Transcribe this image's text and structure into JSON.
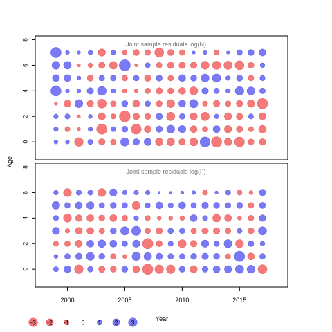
{
  "chart_data": {
    "type": "scatter",
    "xlabel": "Year",
    "ylabel": "Age",
    "x_ticks": [
      2000,
      2005,
      2010,
      2015
    ],
    "y_ticks": [
      0,
      2,
      4,
      6,
      8
    ],
    "xlim": [
      1997.2,
      2019.2
    ],
    "years": [
      1999,
      2000,
      2001,
      2002,
      2003,
      2004,
      2005,
      2006,
      2007,
      2008,
      2009,
      2010,
      2011,
      2012,
      2013,
      2014,
      2015,
      2016,
      2017
    ],
    "colors": {
      "positive": "#6c6cf5",
      "negative": "#f56c6c"
    },
    "panels": [
      {
        "title": "Joint sample residuals log(N)",
        "ylim": [
          -1.4,
          8.3
        ],
        "ages": [
          0,
          1,
          2,
          3,
          4,
          5,
          6,
          7
        ],
        "residuals": [
          [
            0.3,
            0.3,
            -1.4,
            0.5,
            -0.8,
            -0.6,
            1.3,
            0.8,
            1.0,
            -1.1,
            -1.1,
            -0.8,
            -1.2,
            1.9,
            -2.0,
            -1.0,
            -1.8,
            -0.7,
            -0.8
          ],
          [
            0.4,
            -0.5,
            -0.2,
            0.4,
            -2.0,
            0.5,
            0.7,
            -1.9,
            -0.9,
            0.8,
            1.2,
            1.0,
            -0.9,
            -0.6,
            0.9,
            -1.0,
            -0.8,
            -0.5,
            -1.1
          ],
          [
            0.4,
            0.5,
            -0.2,
            0.3,
            -1.0,
            -0.5,
            -2.2,
            -0.8,
            -0.7,
            0.8,
            -1.3,
            0.6,
            -1.0,
            -1.3,
            0.4,
            -1.0,
            -0.8,
            0.5,
            -0.9
          ],
          [
            -0.2,
            -0.9,
            1.2,
            -0.8,
            -1.5,
            -0.6,
            0.7,
            -0.9,
            0.6,
            -0.7,
            -1.2,
            0.9,
            1.3,
            -0.5,
            -0.8,
            -0.6,
            -0.8,
            -1.0,
            -2.0
          ],
          [
            2.0,
            0.3,
            0.3,
            0.8,
            1.5,
            0.4,
            -0.4,
            -0.3,
            -0.6,
            -0.8,
            -0.7,
            -0.9,
            -1.3,
            0.8,
            0.6,
            0.4,
            1.4,
            1.2,
            0.6
          ],
          [
            0.9,
            0.9,
            0.3,
            -0.7,
            0.6,
            0.6,
            -0.6,
            0.6,
            -0.8,
            0.7,
            -0.6,
            0.9,
            0.7,
            1.2,
            1.3,
            0.4,
            0.7,
            -0.6,
            0.5
          ],
          [
            1.2,
            1.1,
            -0.2,
            -0.4,
            -0.8,
            -1.1,
            2.3,
            -0.2,
            0.5,
            -0.6,
            -0.8,
            -0.8,
            -0.8,
            -1.2,
            -1.3,
            -1.3,
            -1.5,
            -0.7,
            0.4
          ],
          [
            2.0,
            0.3,
            0.2,
            0.4,
            -1.0,
            0.4,
            -0.4,
            -0.7,
            -0.6,
            -1.5,
            -0.7,
            -0.6,
            0.2,
            0.3,
            -0.5,
            0.2,
            0.6,
            0.7,
            0.9
          ]
        ]
      },
      {
        "title": "Joint sample residuals log(F)",
        "ylim": [
          -1.4,
          8.3
        ],
        "ages": [
          0,
          1,
          2,
          3,
          4,
          5,
          6
        ],
        "residuals": [
          [
            0.5,
            0.9,
            -1.4,
            0.6,
            -0.8,
            -0.7,
            0.7,
            -0.9,
            -2.0,
            -1.4,
            -1.4,
            0.7,
            -1.0,
            0.7,
            0.9,
            1.0,
            1.3,
            1.2,
            -1.5
          ],
          [
            0.3,
            0.6,
            0.8,
            1.2,
            0.7,
            -0.6,
            -0.3,
            1.3,
            1.1,
            0.8,
            0.6,
            0.6,
            0.7,
            0.8,
            0.7,
            -0.5,
            2.0,
            -0.9,
            0.6
          ],
          [
            -0.5,
            -0.6,
            -0.9,
            0.9,
            1.1,
            0.9,
            0.6,
            1.0,
            -2.0,
            -0.7,
            0.5,
            -1.2,
            -0.8,
            1.0,
            0.6,
            1.2,
            -1.2,
            0.6,
            0.4
          ],
          [
            1.0,
            -0.4,
            -0.9,
            -0.9,
            -0.6,
            0.7,
            1.3,
            1.6,
            -0.6,
            -0.8,
            0.6,
            0.6,
            -0.6,
            -0.8,
            -0.8,
            -0.6,
            0.5,
            -0.7,
            1.3
          ],
          [
            0.5,
            -1.2,
            -0.8,
            -0.9,
            -0.7,
            -0.9,
            -0.6,
            0.4,
            -0.5,
            -0.3,
            -0.3,
            -0.4,
            0.9,
            0.5,
            -1.1,
            -0.9,
            -0.3,
            -0.6,
            0.8
          ],
          [
            1.1,
            0.6,
            0.9,
            1.0,
            0.6,
            0.7,
            0.6,
            -1.2,
            0.5,
            0.9,
            0.5,
            0.9,
            0.6,
            0.8,
            0.7,
            0.6,
            0.7,
            -0.6,
            0.7
          ],
          [
            0.4,
            -1.2,
            0.5,
            0.5,
            -1.2,
            1.0,
            0.4,
            0.4,
            0.4,
            0.1,
            0.1,
            0.2,
            0.3,
            -0.5,
            0.2,
            0.5,
            -0.5,
            -0.3,
            0.8
          ]
        ]
      }
    ],
    "legend": {
      "placement": "bottom-left",
      "values": [
        -3,
        -2,
        -1,
        0,
        1,
        2,
        3
      ],
      "labels": [
        "-3",
        "-2",
        "-1",
        "0",
        "1",
        "2",
        "3"
      ]
    }
  }
}
